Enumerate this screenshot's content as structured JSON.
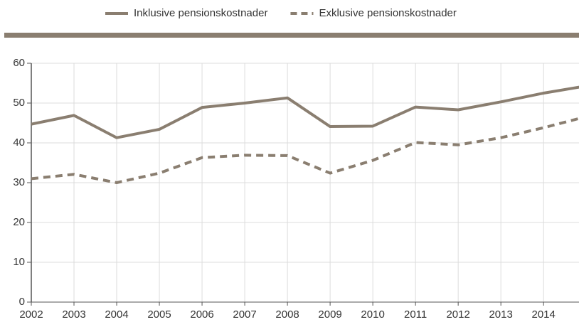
{
  "chart_data": {
    "type": "line",
    "x": [
      2002,
      2003,
      2004,
      2005,
      2006,
      2007,
      2008,
      2009,
      2010,
      2011,
      2012,
      2013,
      2014,
      2015
    ],
    "series": [
      {
        "name": "Inklusive pensionskostnader",
        "color": "#8a7e70",
        "dash": false,
        "values": [
          44.7,
          46.9,
          41.3,
          43.4,
          48.9,
          50,
          51.3,
          44.1,
          44.2,
          49,
          48.3,
          50.3,
          52.5,
          54.3
        ]
      },
      {
        "name": "Exklusive pensionskostnader",
        "color": "#8a7e70",
        "dash": true,
        "values": [
          31,
          32.1,
          30,
          32.4,
          36.3,
          36.9,
          36.8,
          32.4,
          35.6,
          40.1,
          39.5,
          41.3,
          43.8,
          46.6
        ]
      }
    ],
    "xlim": [
      2002,
      2014.83
    ],
    "xticks": [
      2002,
      2003,
      2004,
      2005,
      2006,
      2007,
      2008,
      2009,
      2010,
      2011,
      2012,
      2013,
      2014
    ],
    "ylim": [
      0,
      60
    ],
    "yticks": [
      0,
      10,
      20,
      30,
      40,
      50,
      60
    ],
    "grid": true
  }
}
